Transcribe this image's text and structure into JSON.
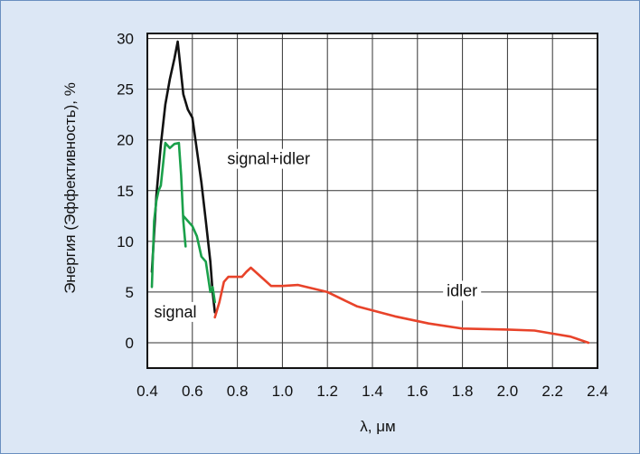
{
  "chart_data": {
    "type": "line",
    "title": "",
    "xlabel": "λ, μм",
    "ylabel": "Энергия (Эффективность), %",
    "xlim": [
      0.4,
      2.4
    ],
    "ylim": [
      -2.5,
      30.5
    ],
    "x_ticks": [
      0.4,
      0.6,
      0.8,
      1.0,
      1.2,
      1.4,
      1.6,
      1.8,
      2.0,
      2.2,
      2.4
    ],
    "x_tick_labels": [
      "0.4",
      "0.6",
      "0.8",
      "1.0",
      "1.2",
      "1.4",
      "1.6",
      "1.8",
      "2.0",
      "2.2",
      "2.4"
    ],
    "y_ticks": [
      0,
      5,
      10,
      15,
      20,
      25,
      30
    ],
    "y_tick_labels": [
      "0",
      "5",
      "10",
      "15",
      "20",
      "25",
      "30"
    ],
    "grid": true,
    "series": [
      {
        "name": "signal+idler",
        "color": "#111111",
        "x": [
          0.42,
          0.44,
          0.46,
          0.48,
          0.5,
          0.52,
          0.535,
          0.56,
          0.58,
          0.6,
          0.62,
          0.64,
          0.66,
          0.68,
          0.69,
          0.7
        ],
        "y": [
          7,
          14.5,
          19.5,
          23.5,
          26,
          28,
          29.7,
          24.5,
          23,
          22.2,
          19,
          15.8,
          12,
          8,
          5,
          3
        ]
      },
      {
        "name": "signal",
        "color": "#1aa04a",
        "segments": [
          {
            "x": [
              0.42,
              0.43,
              0.44,
              0.45,
              0.46,
              0.48,
              0.5,
              0.52,
              0.54,
              0.55,
              0.56,
              0.57
            ],
            "y": [
              5.5,
              12,
              14,
              15,
              15.5,
              19.7,
              19.2,
              19.6,
              19.7,
              16.5,
              12,
              9.5
            ]
          },
          {
            "x": [
              0.56,
              0.58,
              0.6,
              0.62,
              0.64,
              0.66,
              0.67,
              0.68,
              0.69,
              0.7
            ],
            "y": [
              12.5,
              12,
              11.5,
              10.5,
              8.5,
              8,
              6.5,
              5,
              5.5,
              4
            ]
          }
        ]
      },
      {
        "name": "idler",
        "color": "#e8432a",
        "x": [
          0.7,
          0.72,
          0.74,
          0.76,
          0.8,
          0.82,
          0.84,
          0.86,
          0.88,
          0.92,
          0.95,
          1.0,
          1.07,
          1.2,
          1.33,
          1.5,
          1.65,
          1.8,
          2.0,
          2.12,
          2.2,
          2.28,
          2.36
        ],
        "y": [
          2.5,
          4.0,
          6.0,
          6.5,
          6.5,
          6.5,
          7.0,
          7.4,
          7.0,
          6.2,
          5.6,
          5.6,
          5.7,
          5.0,
          3.6,
          2.6,
          1.9,
          1.4,
          1.3,
          1.2,
          0.9,
          0.6,
          0.0
        ]
      }
    ],
    "annotations": [
      {
        "text": "signal+idler",
        "x": 0.755,
        "y": 17.6
      },
      {
        "text": "signal",
        "x": 0.43,
        "y": 2.5
      },
      {
        "text": "idler",
        "x": 1.73,
        "y": 4.6
      }
    ]
  }
}
